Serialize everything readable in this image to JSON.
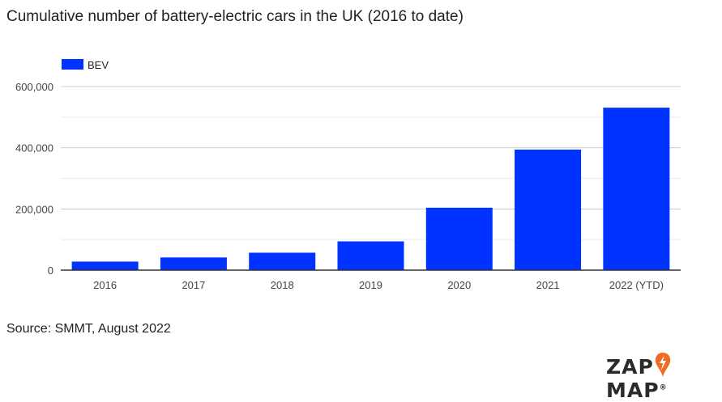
{
  "title": "Cumulative number of battery-electric cars in the UK (2016 to date)",
  "source": "Source: SMMT, August 2022",
  "logo": {
    "left": "ZAP",
    "right": "MAP",
    "mark": "®",
    "accent": "#f26b22"
  },
  "chart_data": {
    "type": "bar",
    "categories": [
      "2016",
      "2017",
      "2018",
      "2019",
      "2020",
      "2021",
      "2022 (YTD)"
    ],
    "series": [
      {
        "name": "BEV",
        "color": "#0033ff",
        "values": [
          28000,
          41500,
          57000,
          94000,
          204000,
          394000,
          531000
        ]
      }
    ],
    "ylim": [
      0,
      600000
    ],
    "yticks": [
      0,
      200000,
      400000,
      600000
    ],
    "ytick_labels": [
      "0",
      "200,000",
      "400,000",
      "600,000"
    ],
    "grid": true,
    "legend": "top-left"
  }
}
